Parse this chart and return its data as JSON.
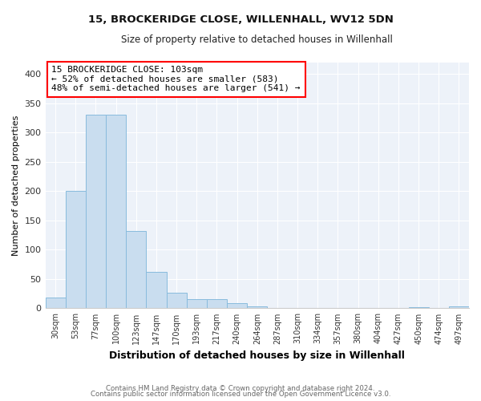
{
  "title": "15, BROCKERIDGE CLOSE, WILLENHALL, WV12 5DN",
  "subtitle": "Size of property relative to detached houses in Willenhall",
  "xlabel": "Distribution of detached houses by size in Willenhall",
  "ylabel": "Number of detached properties",
  "bar_color": "#c9ddef",
  "bar_edge_color": "#88bbdd",
  "background_color": "#edf2f9",
  "grid_color": "#ffffff",
  "categories": [
    "30sqm",
    "53sqm",
    "77sqm",
    "100sqm",
    "123sqm",
    "147sqm",
    "170sqm",
    "193sqm",
    "217sqm",
    "240sqm",
    "264sqm",
    "287sqm",
    "310sqm",
    "334sqm",
    "357sqm",
    "380sqm",
    "404sqm",
    "427sqm",
    "450sqm",
    "474sqm",
    "497sqm"
  ],
  "values": [
    18,
    200,
    330,
    330,
    132,
    62,
    27,
    16,
    16,
    9,
    3,
    1,
    0,
    0,
    0,
    0,
    0,
    0,
    2,
    0,
    3
  ],
  "ylim": [
    0,
    420
  ],
  "yticks": [
    0,
    50,
    100,
    150,
    200,
    250,
    300,
    350,
    400
  ],
  "annotation_text": "15 BROCKERIDGE CLOSE: 103sqm\n← 52% of detached houses are smaller (583)\n48% of semi-detached houses are larger (541) →",
  "footer_line1": "Contains HM Land Registry data © Crown copyright and database right 2024.",
  "footer_line2": "Contains public sector information licensed under the Open Government Licence v3.0."
}
